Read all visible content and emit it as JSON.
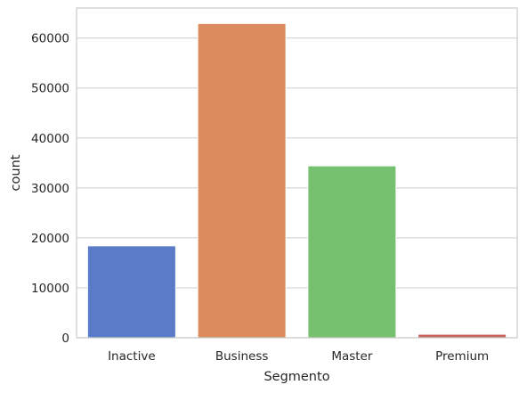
{
  "chart_data": {
    "type": "bar",
    "title": "",
    "xlabel": "Segmento",
    "ylabel": "count",
    "categories": [
      "Inactive",
      "Business",
      "Master",
      "Premium"
    ],
    "values": [
      18400,
      62900,
      34400,
      700
    ],
    "colors": [
      "#5a7cc8",
      "#dc8b5e",
      "#75c170",
      "#c8625c"
    ],
    "ylim": [
      0,
      66000
    ],
    "yticks": [
      0,
      10000,
      20000,
      30000,
      40000,
      50000,
      60000
    ],
    "grid": "horizontal",
    "legend": "none",
    "style": {
      "grid_color": "#d6d6d6",
      "frame_color": "#cccccc",
      "text_color": "#262626"
    }
  }
}
